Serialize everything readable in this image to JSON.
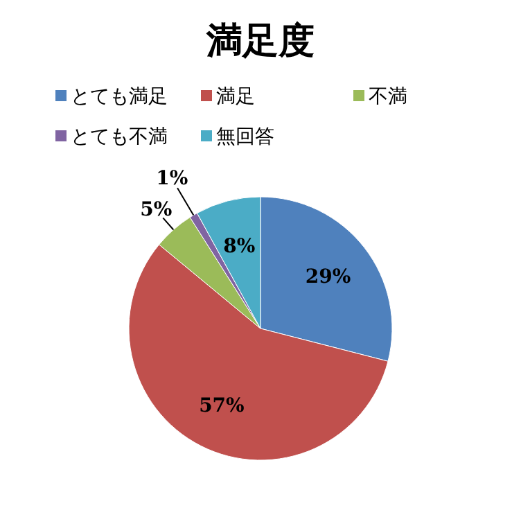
{
  "chart_data": {
    "type": "pie",
    "title": "満足度",
    "categories": [
      "とても満足",
      "満足",
      "不満",
      "とても不満",
      "無回答"
    ],
    "values": [
      29,
      57,
      5,
      1,
      8
    ],
    "colors": [
      "#4f81bd",
      "#c0504d",
      "#9bbb59",
      "#8064a2",
      "#4bacc6"
    ],
    "value_labels": [
      "29%",
      "57%",
      "5%",
      "1%",
      "8%"
    ],
    "legend": "top"
  }
}
